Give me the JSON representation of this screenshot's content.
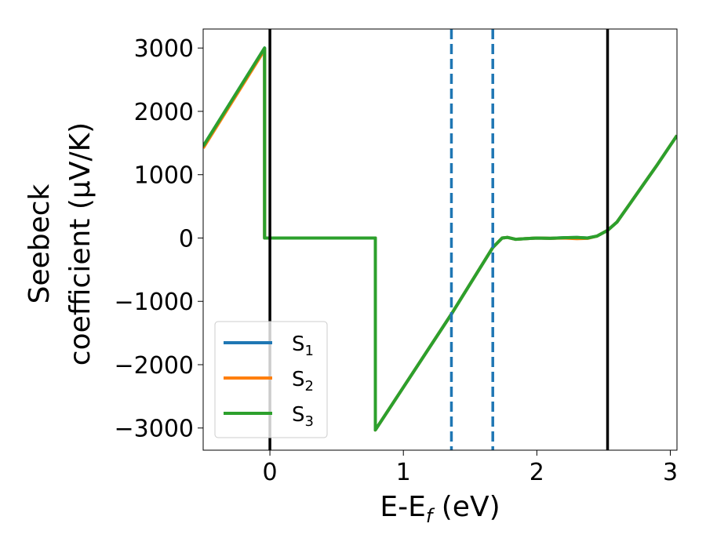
{
  "chart_data": {
    "type": "line",
    "xlabel": {
      "main": "E-E",
      "sub": "f",
      "unit": " (eV)"
    },
    "ylabel": {
      "line1": "Seebeck",
      "line2": "coefficient  (μV/K)"
    },
    "xlim": [
      -0.5,
      3.05
    ],
    "ylim": [
      -3350,
      3300
    ],
    "xticks": [
      0,
      1,
      2,
      3
    ],
    "yticks": [
      -3000,
      -2000,
      -1000,
      0,
      1000,
      2000,
      3000
    ],
    "xtick_labels": [
      "0",
      "1",
      "2",
      "3"
    ],
    "ytick_labels": [
      "−3000",
      "−2000",
      "−1000",
      "0",
      "1000",
      "2000",
      "3000"
    ],
    "grid": false,
    "legend_position": "lower-left",
    "vlines": [
      {
        "x": 0.0,
        "style": "solid",
        "color": "#000000"
      },
      {
        "x": 1.36,
        "style": "dashed",
        "color": "#1f77b4"
      },
      {
        "x": 1.67,
        "style": "dashed",
        "color": "#1f77b4"
      },
      {
        "x": 2.53,
        "style": "solid",
        "color": "#000000"
      }
    ],
    "series": [
      {
        "name": "S",
        "sub": "1",
        "color": "#1f77b4",
        "x": [
          -0.5,
          -0.04,
          -0.04,
          0.79,
          0.79,
          1.36,
          1.67,
          1.74,
          1.78,
          1.84,
          1.92,
          2.0,
          2.1,
          2.2,
          2.3,
          2.38,
          2.45,
          2.53,
          2.6,
          2.7,
          2.8,
          2.9,
          3.05
        ],
        "y": [
          1450,
          3000,
          0,
          0,
          -3030,
          -1200,
          -150,
          0,
          10,
          -20,
          -10,
          0,
          -5,
          5,
          10,
          0,
          30,
          120,
          250,
          550,
          850,
          1150,
          1620
        ]
      },
      {
        "name": "S",
        "sub": "2",
        "color": "#ff7f0e",
        "x": [
          -0.5,
          -0.04,
          -0.04,
          0.79,
          0.79,
          1.36,
          1.67,
          1.74,
          1.78,
          1.84,
          1.92,
          2.0,
          2.1,
          2.2,
          2.3,
          2.38,
          2.45,
          2.53,
          2.6,
          2.7,
          2.8,
          2.9,
          3.05
        ],
        "y": [
          1420,
          2970,
          0,
          0,
          -3030,
          -1200,
          -150,
          0,
          10,
          -20,
          -10,
          0,
          -5,
          0,
          -10,
          -5,
          30,
          120,
          250,
          550,
          850,
          1150,
          1620
        ]
      },
      {
        "name": "S",
        "sub": "3",
        "color": "#2ca02c",
        "x": [
          -0.5,
          -0.04,
          -0.04,
          0.79,
          0.79,
          1.36,
          1.67,
          1.74,
          1.78,
          1.84,
          1.92,
          2.0,
          2.1,
          2.2,
          2.3,
          2.38,
          2.45,
          2.53,
          2.6,
          2.7,
          2.8,
          2.9,
          3.05
        ],
        "y": [
          1450,
          3000,
          0,
          0,
          -3030,
          -1200,
          -150,
          0,
          10,
          -20,
          -10,
          0,
          -5,
          5,
          10,
          0,
          30,
          120,
          250,
          550,
          850,
          1150,
          1620
        ]
      }
    ]
  }
}
